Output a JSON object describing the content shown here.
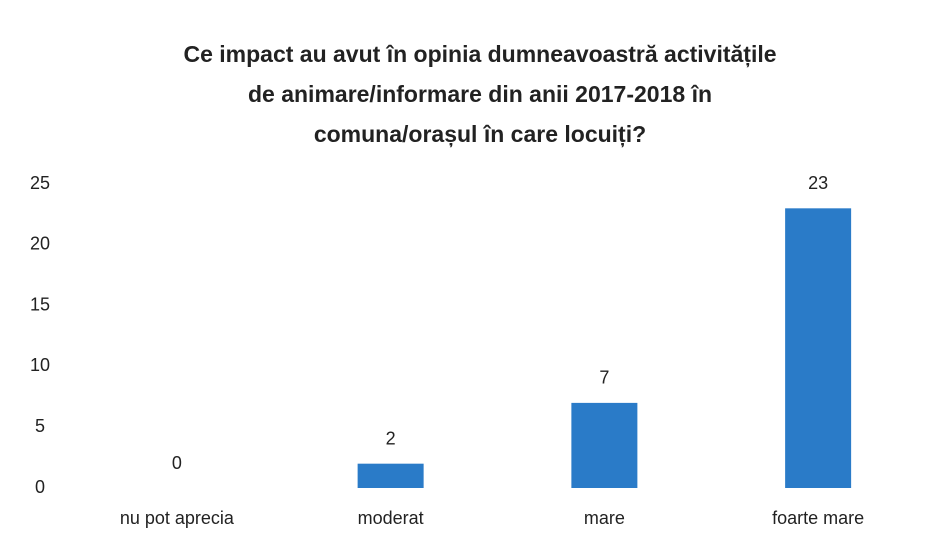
{
  "chart_data": {
    "type": "bar",
    "title": [
      "Ce impact au avut în opinia dumneavoastră activitățile",
      "de animare/informare din anii 2017-2018 în",
      "comuna/orașul în care locuiți?"
    ],
    "categories": [
      "nu pot aprecia",
      "moderat",
      "mare",
      "foarte mare"
    ],
    "values": [
      0,
      2,
      7,
      23
    ],
    "color": "#2a7bc8",
    "ylim": [
      0,
      25
    ],
    "yticks": [
      0,
      5,
      10,
      15,
      20,
      25
    ],
    "grid": false
  }
}
